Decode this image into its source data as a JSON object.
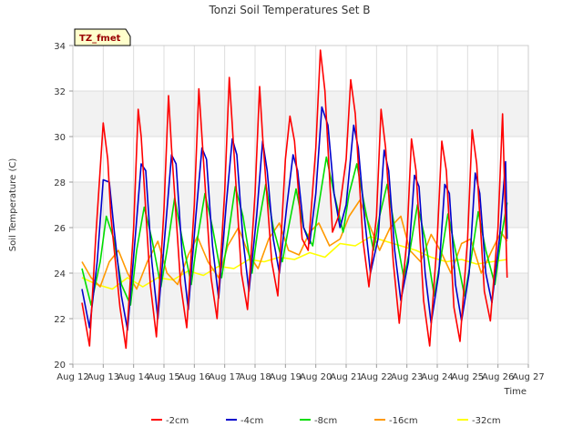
{
  "chart_data": {
    "type": "line",
    "title": "Tonzi Soil Temperatures Set B",
    "xlabel": "Time",
    "ylabel": "Soil Temperature (C)",
    "badge": "TZ_fmet",
    "ylim": [
      20,
      34
    ],
    "xlim": [
      12,
      27
    ],
    "yticks": [
      "20",
      "22",
      "24",
      "26",
      "28",
      "30",
      "32",
      "34"
    ],
    "xticks": [
      "Aug 12",
      "Aug 13",
      "Aug 14",
      "Aug 15",
      "Aug 16",
      "Aug 17",
      "Aug 18",
      "Aug 19",
      "Aug 20",
      "Aug 21",
      "Aug 22",
      "Aug 23",
      "Aug 24",
      "Aug 25",
      "Aug 26",
      "Aug 27"
    ],
    "grid": true,
    "legend_position": "bottom",
    "series": [
      {
        "name": "-2cm",
        "color": "#ff0000",
        "x": [
          12.3,
          12.55,
          12.75,
          13.0,
          13.15,
          13.25,
          13.55,
          13.75,
          14.0,
          14.15,
          14.25,
          14.55,
          14.75,
          15.0,
          15.15,
          15.25,
          15.55,
          15.75,
          16.0,
          16.15,
          16.25,
          16.55,
          16.75,
          17.0,
          17.15,
          17.25,
          17.55,
          17.75,
          18.0,
          18.15,
          18.25,
          18.55,
          18.75,
          19.0,
          19.15,
          19.3,
          19.55,
          19.75,
          20.0,
          20.15,
          20.3,
          20.55,
          20.75,
          21.0,
          21.15,
          21.3,
          21.55,
          21.75,
          22.0,
          22.15,
          22.3,
          22.55,
          22.75,
          23.0,
          23.15,
          23.3,
          23.55,
          23.75,
          24.0,
          24.15,
          24.3,
          24.55,
          24.75,
          25.0,
          25.15,
          25.3,
          25.55,
          25.75,
          26.0,
          26.15,
          26.3
        ],
        "y": [
          22.7,
          20.8,
          25.5,
          30.6,
          29.0,
          26.5,
          22.5,
          20.7,
          26.0,
          31.2,
          30.0,
          23.5,
          21.2,
          26.8,
          31.8,
          29.5,
          23.5,
          21.6,
          27.0,
          32.1,
          30.0,
          23.8,
          22.0,
          27.6,
          32.6,
          30.5,
          24.0,
          22.4,
          27.5,
          32.2,
          30.0,
          24.5,
          23.0,
          29.0,
          30.9,
          29.8,
          25.5,
          25.0,
          29.5,
          33.8,
          32.0,
          25.8,
          26.5,
          29.0,
          32.5,
          31.0,
          25.5,
          23.4,
          26.5,
          31.2,
          29.5,
          24.5,
          21.8,
          25.5,
          29.9,
          28.5,
          22.8,
          20.8,
          25.5,
          29.8,
          28.5,
          22.5,
          21.0,
          25.5,
          30.3,
          28.8,
          23.2,
          21.9,
          26.0,
          31.0,
          23.8
        ]
      },
      {
        "name": "-4cm",
        "color": "#0000cc",
        "x": [
          12.3,
          12.55,
          12.8,
          13.0,
          13.2,
          13.35,
          13.6,
          13.8,
          14.05,
          14.25,
          14.4,
          14.6,
          14.8,
          15.05,
          15.25,
          15.4,
          15.6,
          15.8,
          16.05,
          16.25,
          16.4,
          16.6,
          16.8,
          17.05,
          17.25,
          17.4,
          17.6,
          17.8,
          18.05,
          18.25,
          18.4,
          18.6,
          18.8,
          19.05,
          19.25,
          19.4,
          19.6,
          19.8,
          20.0,
          20.2,
          20.4,
          20.6,
          20.8,
          21.0,
          21.25,
          21.4,
          21.6,
          21.8,
          22.05,
          22.25,
          22.4,
          22.6,
          22.8,
          23.05,
          23.25,
          23.4,
          23.6,
          23.8,
          24.05,
          24.25,
          24.4,
          24.6,
          24.8,
          25.05,
          25.25,
          25.4,
          25.6,
          25.8,
          26.05,
          26.25,
          26.3
        ],
        "y": [
          23.3,
          21.6,
          24.5,
          28.1,
          28.0,
          26.0,
          23.0,
          21.5,
          25.5,
          28.8,
          28.5,
          24.5,
          22.0,
          26.0,
          29.2,
          28.8,
          24.8,
          22.4,
          26.5,
          29.5,
          29.0,
          25.2,
          22.9,
          27.0,
          29.9,
          29.2,
          25.5,
          23.2,
          26.5,
          29.8,
          28.5,
          25.5,
          24.0,
          27.0,
          29.2,
          28.5,
          26.0,
          25.3,
          27.5,
          31.3,
          30.5,
          27.5,
          26.0,
          27.0,
          30.5,
          29.5,
          26.5,
          24.0,
          25.5,
          29.4,
          28.5,
          25.0,
          22.8,
          24.5,
          28.3,
          27.8,
          24.0,
          21.8,
          24.0,
          27.9,
          27.5,
          23.5,
          21.9,
          24.0,
          28.4,
          27.5,
          24.0,
          22.7,
          25.5,
          28.9,
          25.5
        ]
      },
      {
        "name": "-8cm",
        "color": "#00dd00",
        "x": [
          12.3,
          12.6,
          12.9,
          13.1,
          13.35,
          13.6,
          13.9,
          14.1,
          14.35,
          14.6,
          14.9,
          15.1,
          15.35,
          15.6,
          15.9,
          16.1,
          16.35,
          16.6,
          16.9,
          17.1,
          17.35,
          17.6,
          17.9,
          18.1,
          18.35,
          18.6,
          18.9,
          19.1,
          19.35,
          19.6,
          19.9,
          20.1,
          20.35,
          20.6,
          20.9,
          21.1,
          21.35,
          21.6,
          21.9,
          22.1,
          22.35,
          22.6,
          22.9,
          23.1,
          23.35,
          23.6,
          23.9,
          24.1,
          24.35,
          24.6,
          24.9,
          25.1,
          25.35,
          25.6,
          25.9,
          26.1,
          26.3
        ],
        "y": [
          24.2,
          22.6,
          24.5,
          26.5,
          25.5,
          23.5,
          22.6,
          25.0,
          26.9,
          25.5,
          23.4,
          25.0,
          27.3,
          25.5,
          23.5,
          25.5,
          27.5,
          26.0,
          23.8,
          25.5,
          27.8,
          26.5,
          24.0,
          26.0,
          27.9,
          26.0,
          24.5,
          26.0,
          27.7,
          26.0,
          25.2,
          27.0,
          29.1,
          27.5,
          25.8,
          27.5,
          28.8,
          27.0,
          25.0,
          26.5,
          27.9,
          26.0,
          23.8,
          25.0,
          27.0,
          25.5,
          23.0,
          24.5,
          26.6,
          25.0,
          23.0,
          24.5,
          26.7,
          25.0,
          23.5,
          25.5,
          27.1
        ]
      },
      {
        "name": "-16cm",
        "color": "#ff9900",
        "x": [
          12.3,
          12.6,
          12.9,
          13.2,
          13.5,
          13.8,
          14.1,
          14.45,
          14.8,
          15.1,
          15.45,
          15.8,
          16.1,
          16.45,
          16.8,
          17.1,
          17.45,
          17.8,
          18.1,
          18.45,
          18.8,
          19.1,
          19.45,
          19.8,
          20.1,
          20.45,
          20.8,
          21.1,
          21.45,
          21.8,
          22.1,
          22.45,
          22.8,
          23.1,
          23.45,
          23.8,
          24.1,
          24.45,
          24.8,
          25.1,
          25.45,
          25.8,
          26.1,
          26.3
        ],
        "y": [
          24.5,
          23.8,
          23.4,
          24.5,
          25.0,
          24.0,
          23.3,
          24.5,
          25.4,
          24.0,
          23.5,
          24.8,
          25.6,
          24.5,
          23.8,
          25.2,
          26.0,
          24.8,
          24.2,
          25.5,
          26.2,
          25.0,
          24.8,
          25.8,
          26.2,
          25.2,
          25.5,
          26.5,
          27.2,
          26.0,
          25.0,
          26.0,
          26.5,
          25.0,
          24.5,
          25.7,
          25.0,
          24.0,
          25.3,
          25.5,
          24.0,
          25.0,
          25.8,
          25.4
        ]
      },
      {
        "name": "-32cm",
        "color": "#ffff00",
        "x": [
          12.3,
          12.8,
          13.3,
          13.8,
          14.3,
          14.8,
          15.3,
          15.8,
          16.3,
          16.8,
          17.3,
          17.8,
          18.3,
          18.8,
          19.3,
          19.8,
          20.3,
          20.8,
          21.3,
          21.8,
          22.3,
          22.8,
          23.3,
          23.8,
          24.3,
          24.8,
          25.3,
          25.8,
          26.3
        ],
        "y": [
          23.8,
          23.5,
          23.3,
          23.8,
          23.4,
          23.8,
          23.7,
          24.1,
          23.9,
          24.3,
          24.2,
          24.6,
          24.5,
          24.7,
          24.6,
          24.9,
          24.7,
          25.3,
          25.2,
          25.6,
          25.4,
          25.2,
          25.0,
          24.7,
          24.5,
          24.6,
          24.4,
          24.5,
          24.6
        ]
      }
    ]
  }
}
